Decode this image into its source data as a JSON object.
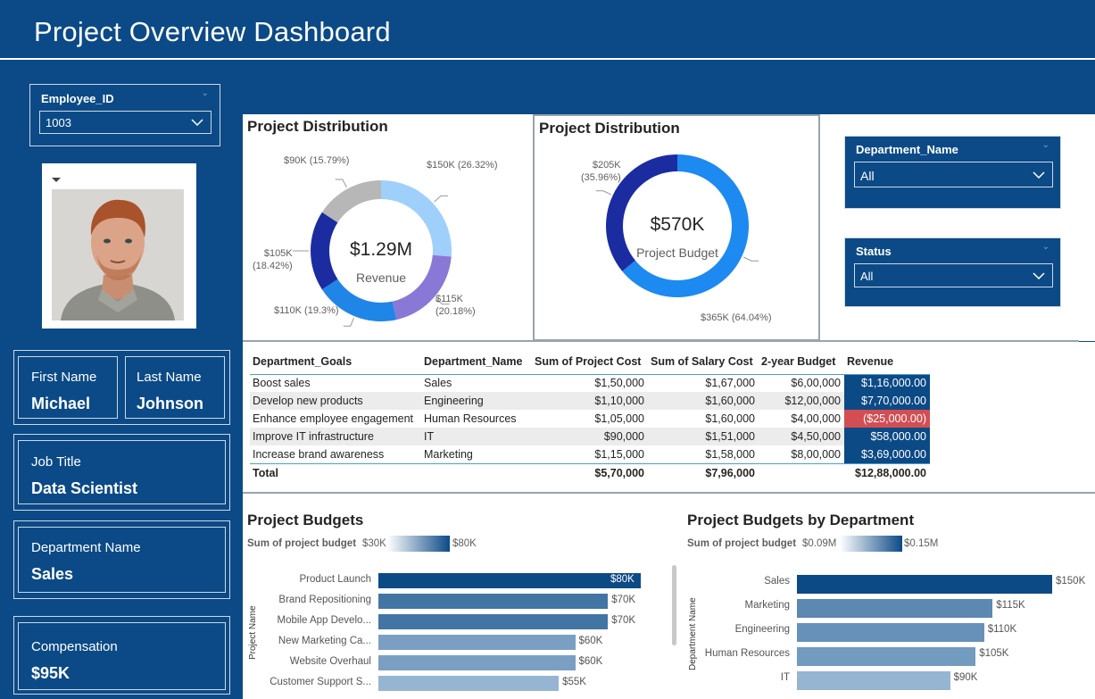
{
  "header": {
    "title": "Project Overview Dashboard"
  },
  "filters": {
    "employee_id": {
      "label": "Employee_ID",
      "value": "1003"
    },
    "department_name": {
      "label": "Department_Name",
      "value": "All"
    },
    "status": {
      "label": "Status",
      "value": "All"
    }
  },
  "employee": {
    "first_name_label": "First Name",
    "first_name": "Michael",
    "last_name_label": "Last Name",
    "last_name": "Johnson",
    "job_title_label": "Job Title",
    "job_title": "Data Scientist",
    "department_label": "Department Name",
    "department": "Sales",
    "compensation_label": "Compensation",
    "compensation": "$95K"
  },
  "chart_data": [
    {
      "type": "pie",
      "title": "Project Distribution",
      "center_value": "$1.29M",
      "center_label": "Revenue",
      "slices": [
        {
          "value": 150,
          "label": "$150K (26.32%)",
          "color": "#9fd0fb"
        },
        {
          "value": 115,
          "label": "$115K (20.18%)",
          "color": "#8a78d6"
        },
        {
          "value": 110,
          "label": "$110K (19.3%)",
          "color": "#1f86e8"
        },
        {
          "value": 105,
          "label": "$105K (18.42%)",
          "color": "#1b2ca1"
        },
        {
          "value": 90,
          "label": "$90K (15.79%)",
          "color": "#b7b7b7"
        }
      ]
    },
    {
      "type": "pie",
      "title": "Project Distribution",
      "center_value": "$570K",
      "center_label": "Project Budget",
      "slices": [
        {
          "value": 365,
          "label": "$365K (64.04%)",
          "color": "#1c8af0"
        },
        {
          "value": 205,
          "label": "$205K (35.96%)",
          "color": "#1b2ca1"
        }
      ]
    },
    {
      "type": "table",
      "columns": [
        "Department_Goals",
        "Department_Name",
        "Sum of Project Cost",
        "Sum of Salary Cost",
        "2-year Budget",
        "Revenue"
      ],
      "rows": [
        [
          "Boost sales",
          "Sales",
          "$1,50,000",
          "$1,67,000",
          "$6,00,000",
          "$1,16,000.00"
        ],
        [
          "Develop new products",
          "Engineering",
          "$1,10,000",
          "$1,60,000",
          "$12,00,000",
          "$7,70,000.00"
        ],
        [
          "Enhance employee engagement",
          "Human Resources",
          "$1,05,000",
          "$1,60,000",
          "$4,00,000",
          "($25,000.00)"
        ],
        [
          "Improve IT infrastructure",
          "IT",
          "$90,000",
          "$1,51,000",
          "$4,50,000",
          "$58,000.00"
        ],
        [
          "Increase brand awareness",
          "Marketing",
          "$1,15,000",
          "$1,58,000",
          "$8,00,000",
          "$3,69,000.00"
        ]
      ],
      "total": [
        "Total",
        "",
        "$5,70,000",
        "$7,96,000",
        "",
        "$12,88,000.00"
      ],
      "revenue_colors": [
        "#0c4a86",
        "#0c4a86",
        "#d24e52",
        "#0c4a86",
        "#0c4a86"
      ]
    },
    {
      "type": "bar",
      "title": "Project Budgets",
      "legend_title": "Sum of project budget",
      "legend_min": "$30K",
      "legend_max": "$80K",
      "ylabel": "Project Name",
      "categories": [
        "Product Launch",
        "Brand Repositioning",
        "Mobile App Develo...",
        "New Marketing Ca...",
        "Website Overhaul",
        "Customer Support S..."
      ],
      "values": [
        80,
        70,
        70,
        60,
        60,
        55
      ],
      "labels": [
        "$80K",
        "$70K",
        "$70K",
        "$60K",
        "$60K",
        "$55K"
      ],
      "xlim": [
        0,
        80
      ]
    },
    {
      "type": "bar",
      "title": "Project Budgets by Department",
      "legend_title": "Sum of project budget",
      "legend_min": "$0.09M",
      "legend_max": "$0.15M",
      "ylabel": "Department Name",
      "categories": [
        "Sales",
        "Marketing",
        "Engineering",
        "Human Resources",
        "IT"
      ],
      "values": [
        150,
        115,
        110,
        105,
        90
      ],
      "labels": [
        "$150K",
        "$115K",
        "$110K",
        "$105K",
        "$90K"
      ],
      "xlim": [
        0,
        150
      ]
    }
  ]
}
